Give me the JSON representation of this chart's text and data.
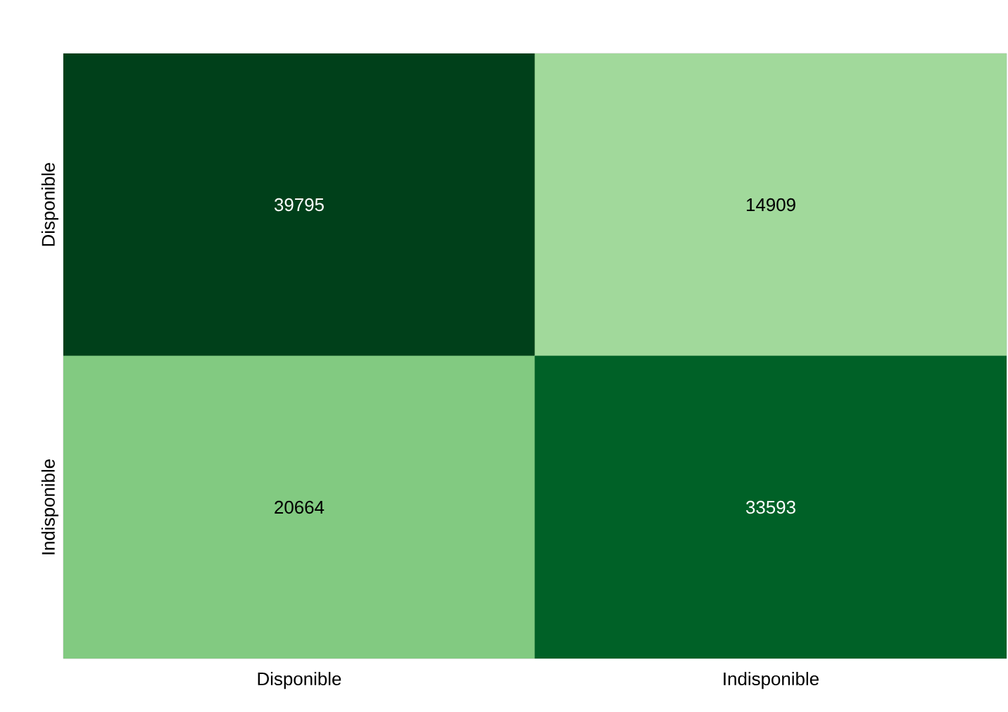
{
  "chart_data": {
    "type": "heatmap",
    "categories": [
      "Disponible",
      "Indisponible"
    ],
    "y_categories": [
      "Disponible",
      "Indisponible"
    ],
    "cells": [
      [
        39795,
        14909
      ],
      [
        20664,
        33593
      ]
    ],
    "data_labels": true
  }
}
